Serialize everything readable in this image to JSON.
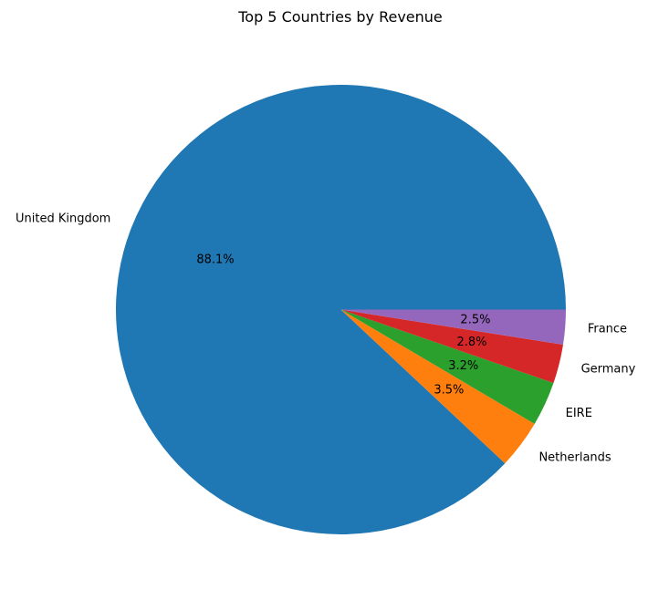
{
  "chart_data": {
    "type": "pie",
    "title": "Top 5 Countries by Revenue",
    "categories": [
      "United Kingdom",
      "Netherlands",
      "EIRE",
      "Germany",
      "France"
    ],
    "values": [
      88.1,
      3.5,
      3.2,
      2.8,
      2.5
    ],
    "value_labels": [
      "88.1%",
      "3.5%",
      "3.2%",
      "2.8%",
      "2.5%"
    ],
    "colors": [
      "#1f77b4",
      "#ff7f0e",
      "#2ca02c",
      "#d62728",
      "#9467bd"
    ],
    "start_angle_deg": 0,
    "direction": "counterclockwise",
    "legend": "none"
  }
}
